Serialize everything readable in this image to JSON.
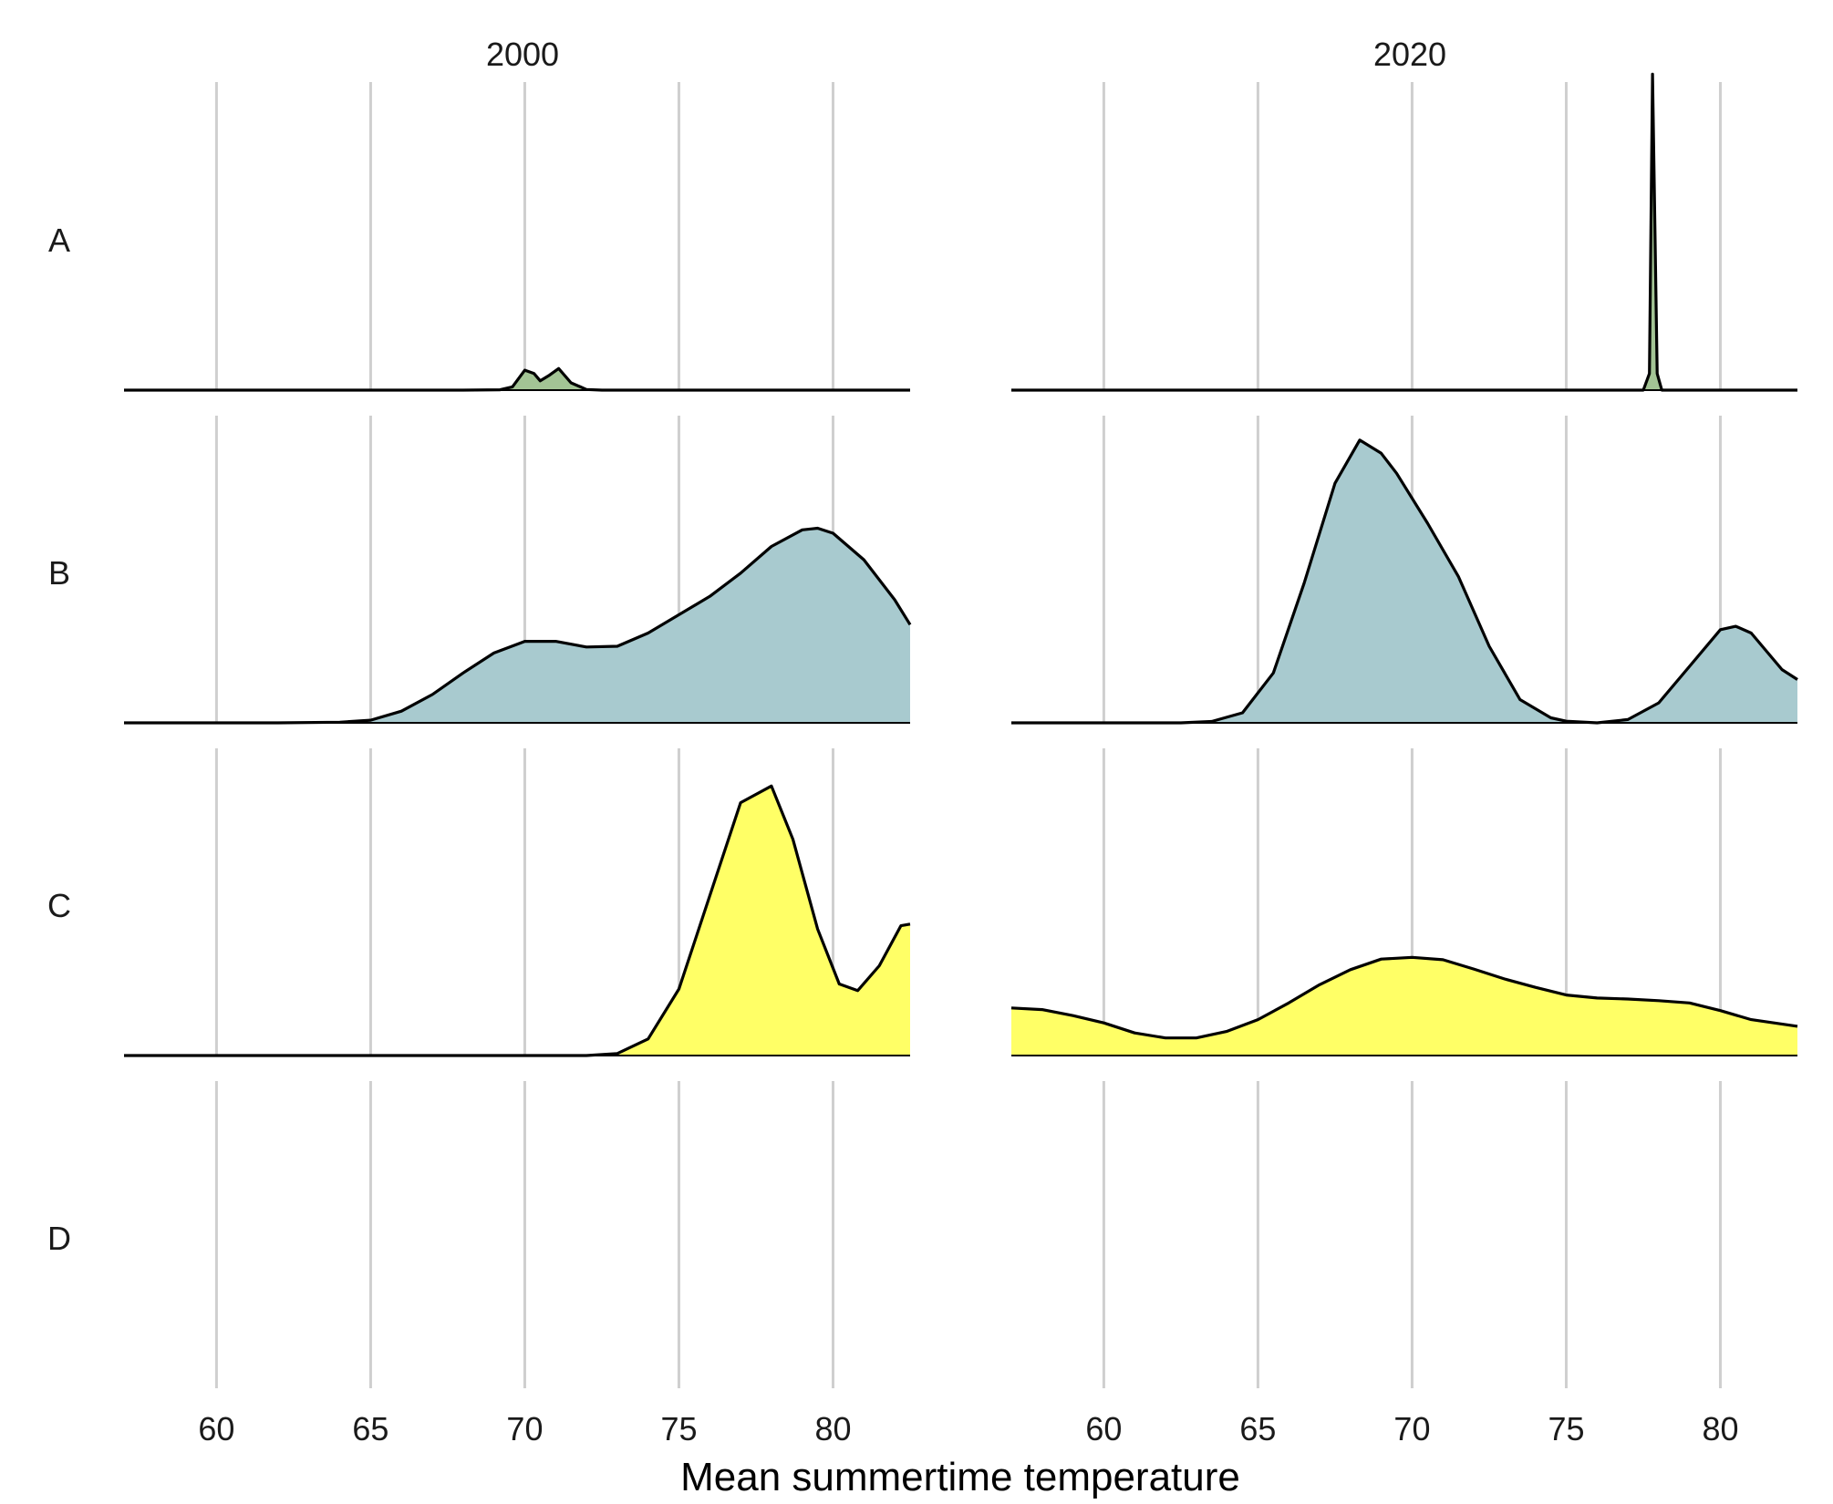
{
  "colors": {
    "A": "#a3c495",
    "B": "#a8cacf",
    "C": "#ffff66",
    "gridline": "#cfcfcf",
    "outline": "#000000"
  },
  "chart_data": {
    "type": "area",
    "subtype": "faceted ridgeline density",
    "xlabel": "Mean summertime temperature",
    "xlim": [
      57,
      82.5
    ],
    "xticks": [
      "60",
      "65",
      "70",
      "75",
      "80"
    ],
    "xtick_values": [
      60,
      65,
      70,
      75,
      80
    ],
    "grid": "vertical",
    "panels": [
      {
        "title": "2000",
        "rows": [
          {
            "label": "A",
            "series": [
              [
                57,
                0
              ],
              [
                68,
                0
              ],
              [
                69.2,
                0.001
              ],
              [
                69.6,
                0.01
              ],
              [
                70,
                0.06
              ],
              [
                70.3,
                0.05
              ],
              [
                70.5,
                0.028
              ],
              [
                70.8,
                0.045
              ],
              [
                71.1,
                0.065
              ],
              [
                71.5,
                0.022
              ],
              [
                72,
                0.002
              ],
              [
                72.5,
                0
              ],
              [
                82.5,
                0
              ]
            ]
          },
          {
            "label": "B",
            "series": [
              [
                57,
                0
              ],
              [
                62,
                0
              ],
              [
                64,
                0.002
              ],
              [
                65,
                0.008
              ],
              [
                66,
                0.035
              ],
              [
                67,
                0.085
              ],
              [
                68,
                0.15
              ],
              [
                69,
                0.21
              ],
              [
                70,
                0.245
              ],
              [
                71,
                0.245
              ],
              [
                72,
                0.228
              ],
              [
                73,
                0.23
              ],
              [
                74,
                0.27
              ],
              [
                75,
                0.325
              ],
              [
                76,
                0.38
              ],
              [
                77,
                0.45
              ],
              [
                78,
                0.53
              ],
              [
                79,
                0.58
              ],
              [
                79.5,
                0.585
              ],
              [
                80,
                0.57
              ],
              [
                81,
                0.49
              ],
              [
                82,
                0.37
              ],
              [
                82.5,
                0.295
              ]
            ]
          },
          {
            "label": "C",
            "series": [
              [
                57,
                0
              ],
              [
                72,
                0
              ],
              [
                73,
                0.006
              ],
              [
                74,
                0.05
              ],
              [
                75,
                0.2
              ],
              [
                76,
                0.48
              ],
              [
                77,
                0.76
              ],
              [
                78,
                0.81
              ],
              [
                78.7,
                0.65
              ],
              [
                79.5,
                0.38
              ],
              [
                80.2,
                0.215
              ],
              [
                80.8,
                0.195
              ],
              [
                81.5,
                0.27
              ],
              [
                82.2,
                0.39
              ],
              [
                82.5,
                0.395
              ]
            ]
          },
          {
            "label": "D",
            "series": []
          }
        ]
      },
      {
        "title": "2020",
        "rows": [
          {
            "label": "A",
            "series": [
              [
                57,
                0
              ],
              [
                77.5,
                0
              ],
              [
                77.7,
                0.05
              ],
              [
                77.8,
                0.95
              ],
              [
                77.95,
                0.05
              ],
              [
                78.1,
                0
              ],
              [
                82.5,
                0
              ]
            ]
          },
          {
            "label": "B",
            "series": [
              [
                57,
                0
              ],
              [
                62.5,
                0
              ],
              [
                63.5,
                0.004
              ],
              [
                64.5,
                0.03
              ],
              [
                65.5,
                0.15
              ],
              [
                66.5,
                0.42
              ],
              [
                67.5,
                0.72
              ],
              [
                68.3,
                0.85
              ],
              [
                69,
                0.81
              ],
              [
                69.5,
                0.75
              ],
              [
                70.5,
                0.6
              ],
              [
                71.5,
                0.44
              ],
              [
                72.5,
                0.23
              ],
              [
                73.5,
                0.07
              ],
              [
                74.5,
                0.015
              ],
              [
                75,
                0.005
              ],
              [
                76,
                0
              ],
              [
                77,
                0.01
              ],
              [
                78,
                0.06
              ],
              [
                79,
                0.17
              ],
              [
                80,
                0.28
              ],
              [
                80.5,
                0.29
              ],
              [
                81,
                0.27
              ],
              [
                82,
                0.16
              ],
              [
                82.5,
                0.13
              ]
            ]
          },
          {
            "label": "C",
            "series": [
              [
                57,
                0.143
              ],
              [
                58,
                0.138
              ],
              [
                59,
                0.12
              ],
              [
                60,
                0.098
              ],
              [
                61,
                0.068
              ],
              [
                62,
                0.053
              ],
              [
                63,
                0.053
              ],
              [
                64,
                0.073
              ],
              [
                65,
                0.108
              ],
              [
                66,
                0.158
              ],
              [
                67,
                0.213
              ],
              [
                68,
                0.258
              ],
              [
                69,
                0.29
              ],
              [
                70,
                0.295
              ],
              [
                71,
                0.288
              ],
              [
                72,
                0.26
              ],
              [
                73,
                0.23
              ],
              [
                74,
                0.205
              ],
              [
                75,
                0.182
              ],
              [
                76,
                0.173
              ],
              [
                77,
                0.17
              ],
              [
                78,
                0.165
              ],
              [
                79,
                0.158
              ],
              [
                80,
                0.135
              ],
              [
                81,
                0.108
              ],
              [
                82.5,
                0.088
              ]
            ]
          },
          {
            "label": "D",
            "series": []
          }
        ]
      }
    ]
  }
}
